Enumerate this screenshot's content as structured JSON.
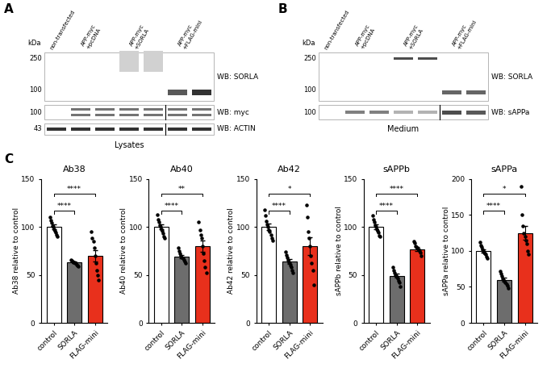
{
  "chart_data": [
    {
      "type": "bar",
      "title": "Ab38",
      "ylabel": "Ab38 relative to control",
      "categories": [
        "control",
        "SORLA",
        "FLAG-mini"
      ],
      "values": [
        100,
        63,
        70
      ],
      "errors": [
        2.5,
        1,
        6
      ],
      "points": [
        [
          110,
          107,
          104,
          101,
          100,
          98,
          96,
          94,
          92,
          90
        ],
        [
          66,
          65,
          64,
          63,
          63,
          62,
          62,
          61,
          60,
          59
        ],
        [
          95,
          88,
          85,
          78,
          70,
          62,
          55,
          50,
          45
        ]
      ],
      "colors": [
        "#ffffff",
        "#6d6d6d",
        "#e8301c"
      ],
      "ylim": [
        0,
        150
      ],
      "yticks": [
        0,
        50,
        100,
        150
      ],
      "significance": [
        {
          "from": "control",
          "to": "SORLA",
          "label": "****"
        },
        {
          "from": "control",
          "to": "FLAG-mini",
          "label": "****"
        }
      ]
    },
    {
      "type": "bar",
      "title": "Ab40",
      "ylabel": "Ab40 relative to control",
      "categories": [
        "control",
        "SORLA",
        "FLAG-mini"
      ],
      "values": [
        100,
        69,
        80
      ],
      "errors": [
        2.7,
        1.7,
        6
      ],
      "points": [
        [
          113,
          108,
          105,
          102,
          100,
          98,
          96,
          93,
          90,
          88
        ],
        [
          78,
          75,
          72,
          70,
          68,
          67,
          66,
          64,
          62
        ],
        [
          105,
          97,
          92,
          88,
          80,
          72,
          65,
          58,
          52
        ]
      ],
      "colors": [
        "#ffffff",
        "#6d6d6d",
        "#e8301c"
      ],
      "ylim": [
        0,
        150
      ],
      "yticks": [
        0,
        50,
        100,
        150
      ],
      "significance": [
        {
          "from": "control",
          "to": "SORLA",
          "label": "****"
        },
        {
          "from": "control",
          "to": "FLAG-mini",
          "label": "**"
        }
      ]
    },
    {
      "type": "bar",
      "title": "Ab42",
      "ylabel": "Ab42 relative to control",
      "categories": [
        "control",
        "SORLA",
        "FLAG-mini"
      ],
      "values": [
        100,
        64,
        80
      ],
      "errors": [
        3.5,
        2.3,
        9
      ],
      "points": [
        [
          118,
          112,
          106,
          103,
          100,
          97,
          95,
          92,
          88,
          86
        ],
        [
          74,
          71,
          68,
          66,
          63,
          62,
          60,
          58,
          55,
          52
        ],
        [
          123,
          110,
          95,
          88,
          80,
          70,
          62,
          55,
          40
        ]
      ],
      "colors": [
        "#ffffff",
        "#6d6d6d",
        "#e8301c"
      ],
      "ylim": [
        0,
        150
      ],
      "yticks": [
        0,
        50,
        100,
        150
      ],
      "significance": [
        {
          "from": "control",
          "to": "SORLA",
          "label": "****"
        },
        {
          "from": "control",
          "to": "FLAG-mini",
          "label": "*"
        }
      ]
    },
    {
      "type": "bar",
      "title": "sAPPb",
      "ylabel": "sAPPb relative to control",
      "categories": [
        "control",
        "SORLA",
        "FLAG-mini"
      ],
      "values": [
        100,
        49,
        77
      ],
      "errors": [
        2.4,
        2,
        1.7
      ],
      "points": [
        [
          112,
          108,
          105,
          102,
          100,
          98,
          96,
          94,
          91,
          90
        ],
        [
          58,
          55,
          52,
          50,
          49,
          48,
          46,
          44,
          42,
          38
        ],
        [
          85,
          83,
          80,
          79,
          78,
          77,
          75,
          73,
          70
        ]
      ],
      "colors": [
        "#ffffff",
        "#6d6d6d",
        "#e8301c"
      ],
      "ylim": [
        0,
        150
      ],
      "yticks": [
        0,
        50,
        100,
        150
      ],
      "significance": [
        {
          "from": "control",
          "to": "SORLA",
          "label": "****"
        },
        {
          "from": "control",
          "to": "FLAG-mini",
          "label": "****"
        }
      ]
    },
    {
      "type": "bar",
      "title": "sAPPa",
      "ylabel": "sAPPa relative to control",
      "categories": [
        "control",
        "SORLA",
        "FLAG-mini"
      ],
      "values": [
        100,
        60,
        125
      ],
      "errors": [
        2.3,
        2.5,
        9.5
      ],
      "points": [
        [
          112,
          108,
          105,
          102,
          100,
          98,
          97,
          95,
          92,
          90
        ],
        [
          72,
          68,
          65,
          62,
          60,
          58,
          56,
          54,
          52,
          48
        ],
        [
          190,
          150,
          135,
          125,
          120,
          115,
          110,
          100,
          95
        ]
      ],
      "colors": [
        "#ffffff",
        "#6d6d6d",
        "#e8301c"
      ],
      "ylim": [
        0,
        200
      ],
      "yticks": [
        0,
        50,
        100,
        150,
        200
      ],
      "significance": [
        {
          "from": "control",
          "to": "SORLA",
          "label": "****"
        },
        {
          "from": "control",
          "to": "FLAG-mini",
          "label": "*"
        }
      ]
    }
  ],
  "chart_panel_label": "C",
  "blots": [
    {
      "panel_label": "A",
      "unit": "kDa",
      "caption": "Lysates",
      "lanes": [
        {
          "label": "non-transfected",
          "count": 1
        },
        {
          "label": "APP-myc\n+pcDNA",
          "count": 2
        },
        {
          "label": "APP-myc\n+SORLA",
          "count": 2
        },
        {
          "label": "APP-myc\n+FLAG-mini",
          "count": 2
        }
      ],
      "membranes": [
        {
          "label": "WB: SORLA",
          "markers": [
            250,
            100
          ]
        },
        {
          "label": "WB: myc",
          "markers": [
            100
          ]
        },
        {
          "label": "WB: ACTIN",
          "markers": [
            43
          ]
        }
      ]
    },
    {
      "panel_label": "B",
      "unit": "kDa",
      "caption": "Medium",
      "lanes": [
        {
          "label": "non-transfected",
          "count": 1
        },
        {
          "label": "APP-myc\n+pcDNA",
          "count": 2
        },
        {
          "label": "APP-myc\n+SORLA",
          "count": 2
        },
        {
          "label": "APP-myc\n+FLAG-mini",
          "count": 2
        }
      ],
      "membranes": [
        {
          "label": "WB: SORLA",
          "markers": [
            250,
            100
          ]
        },
        {
          "label": "WB: sAPPa",
          "markers": [
            100
          ]
        }
      ]
    }
  ]
}
